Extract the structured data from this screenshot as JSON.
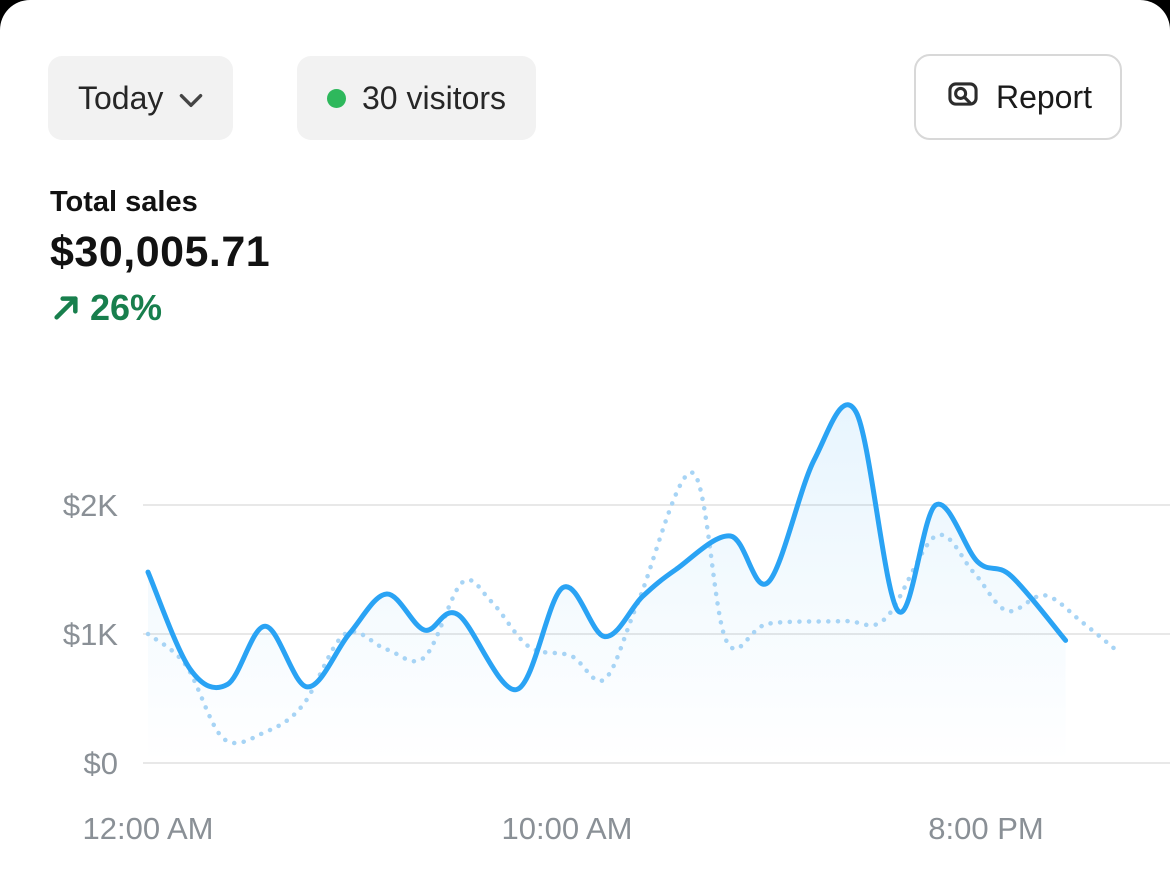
{
  "toolbar": {
    "period_selector": {
      "label": "Today"
    },
    "visitors_badge": {
      "count_label": "30 visitors",
      "dot_color": "#2eb85c"
    },
    "report_button": {
      "label": "Report"
    }
  },
  "metric": {
    "title": "Total sales",
    "value": "$30,005.71",
    "change": {
      "label": "26%",
      "direction": "up",
      "color": "#187f4d"
    }
  },
  "chart_data": {
    "type": "line",
    "title": "Total sales",
    "grid": true,
    "grid_color": "#e4e4e4",
    "ylim": [
      0,
      2900
    ],
    "y_ticks": [
      {
        "label": "$0",
        "value": 0
      },
      {
        "label": "$1K",
        "value": 1000
      },
      {
        "label": "$2K",
        "value": 2000
      }
    ],
    "x_ticks": [
      {
        "label": "12:00 AM",
        "hour": 0
      },
      {
        "label": "10:00 AM",
        "hour": 10
      },
      {
        "label": "8:00 PM",
        "hour": 20
      }
    ],
    "series": [
      {
        "name": "current-period",
        "style": "solid",
        "color": "#2aa3f4",
        "points_hour_value": [
          [
            0,
            1480
          ],
          [
            1,
            730
          ],
          [
            1.9,
            610
          ],
          [
            2.8,
            1060
          ],
          [
            3.8,
            590
          ],
          [
            4.8,
            1000
          ],
          [
            5.7,
            1310
          ],
          [
            6.6,
            1030
          ],
          [
            7.4,
            1150
          ],
          [
            8.8,
            570
          ],
          [
            9.9,
            1360
          ],
          [
            10.9,
            980
          ],
          [
            11.8,
            1290
          ],
          [
            12.6,
            1500
          ],
          [
            13.9,
            1760
          ],
          [
            14.8,
            1400
          ],
          [
            15.9,
            2350
          ],
          [
            16.9,
            2720
          ],
          [
            17.9,
            1180
          ],
          [
            18.8,
            2000
          ],
          [
            19.8,
            1560
          ],
          [
            20.6,
            1450
          ],
          [
            21.9,
            950
          ]
        ]
      },
      {
        "name": "previous-period",
        "style": "dotted",
        "color": "#a7d4f5",
        "points_hour_value": [
          [
            0,
            1000
          ],
          [
            0.9,
            760
          ],
          [
            1.8,
            190
          ],
          [
            2.8,
            240
          ],
          [
            3.7,
            450
          ],
          [
            4.7,
            1000
          ],
          [
            5.7,
            880
          ],
          [
            6.6,
            820
          ],
          [
            7.5,
            1400
          ],
          [
            8.2,
            1250
          ],
          [
            9.1,
            900
          ],
          [
            10.1,
            830
          ],
          [
            10.9,
            650
          ],
          [
            11.7,
            1250
          ],
          [
            13,
            2250
          ],
          [
            13.8,
            950
          ],
          [
            14.8,
            1080
          ],
          [
            16.6,
            1100
          ],
          [
            17.6,
            1120
          ],
          [
            18.8,
            1760
          ],
          [
            19.7,
            1480
          ],
          [
            20.5,
            1180
          ],
          [
            21.4,
            1300
          ],
          [
            22.3,
            1090
          ],
          [
            23.2,
            850
          ]
        ]
      }
    ]
  }
}
